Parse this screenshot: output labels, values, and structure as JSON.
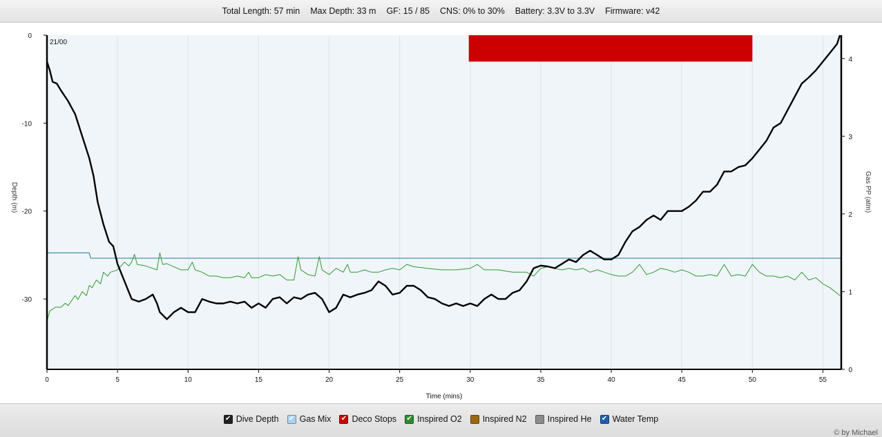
{
  "header": {
    "total_length": "Total Length: 57 min",
    "max_depth": "Max Depth: 33 m",
    "gf": "GF: 15 / 85",
    "cns": "CNS: 0% to 30%",
    "battery": "Battery: 3.3V to 3.3V",
    "firmware": "Firmware: v42"
  },
  "legend": [
    {
      "label": "Dive Depth",
      "color": "#222222",
      "checked": true
    },
    {
      "label": "Gas Mix",
      "color": "#a9d3f5",
      "checked": true
    },
    {
      "label": "Deco Stops",
      "color": "#cc0000",
      "checked": true
    },
    {
      "label": "Inspired O2",
      "color": "#2e8b2e",
      "checked": true
    },
    {
      "label": "Inspired N2",
      "color": "#9a6a10",
      "checked": false
    },
    {
      "label": "Inspired He",
      "color": "#8c8c8c",
      "checked": false
    },
    {
      "label": "Water Temp",
      "color": "#1f5fa8",
      "checked": true
    }
  ],
  "copyright": "© by Michael",
  "chart_data": {
    "type": "line",
    "xlabel": "Time (mins)",
    "ylabel_left": "Depth (m)",
    "ylabel_right": "Gas PP (atm)",
    "xlim": [
      0,
      56.3
    ],
    "ylim_left": [
      -38,
      0
    ],
    "ylim_right": [
      0,
      4.3
    ],
    "x_ticks": [
      0,
      5,
      10,
      15,
      20,
      25,
      30,
      35,
      40,
      45,
      50,
      55
    ],
    "y_ticks_left": [
      0,
      -10,
      -20,
      -30
    ],
    "y_ticks_right": [
      0,
      1,
      2,
      3,
      4
    ],
    "gas_mix_label": "21/00",
    "deco_stop": {
      "start": 29.9,
      "end": 50.0,
      "depth_top": 0,
      "depth_bottom": -3
    },
    "grid": true,
    "series": [
      {
        "name": "Dive Depth",
        "axis": "left",
        "color": "#000000",
        "points": [
          [
            0,
            -3
          ],
          [
            0.2,
            -4
          ],
          [
            0.4,
            -5.3
          ],
          [
            0.7,
            -5.5
          ],
          [
            1,
            -6.3
          ],
          [
            1.5,
            -7.5
          ],
          [
            2,
            -9
          ],
          [
            2.5,
            -11.5
          ],
          [
            3,
            -14
          ],
          [
            3.3,
            -16
          ],
          [
            3.6,
            -19
          ],
          [
            4,
            -21.5
          ],
          [
            4.4,
            -23.5
          ],
          [
            4.7,
            -24
          ],
          [
            5,
            -26
          ],
          [
            5.5,
            -28
          ],
          [
            6,
            -30
          ],
          [
            6.5,
            -30.3
          ],
          [
            7,
            -30
          ],
          [
            7.5,
            -29.5
          ],
          [
            7.8,
            -30.5
          ],
          [
            8,
            -31.5
          ],
          [
            8.5,
            -32.3
          ],
          [
            9,
            -31.5
          ],
          [
            9.5,
            -31
          ],
          [
            10,
            -31.5
          ],
          [
            10.5,
            -31.5
          ],
          [
            11,
            -30
          ],
          [
            11.5,
            -30.3
          ],
          [
            12,
            -30.5
          ],
          [
            12.5,
            -30.5
          ],
          [
            13,
            -30.3
          ],
          [
            13.5,
            -30.5
          ],
          [
            14,
            -30.3
          ],
          [
            14.5,
            -31
          ],
          [
            15,
            -30.5
          ],
          [
            15.5,
            -31
          ],
          [
            16,
            -30
          ],
          [
            16.5,
            -29.8
          ],
          [
            17,
            -30.5
          ],
          [
            17.5,
            -29.8
          ],
          [
            18,
            -30
          ],
          [
            18.5,
            -29.5
          ],
          [
            19,
            -29.3
          ],
          [
            19.5,
            -30
          ],
          [
            20,
            -31.5
          ],
          [
            20.5,
            -31
          ],
          [
            21,
            -29.5
          ],
          [
            21.5,
            -29.8
          ],
          [
            22,
            -29.5
          ],
          [
            22.5,
            -29.3
          ],
          [
            23,
            -29
          ],
          [
            23.5,
            -28
          ],
          [
            24,
            -28.5
          ],
          [
            24.5,
            -29.5
          ],
          [
            25,
            -29.3
          ],
          [
            25.5,
            -28.5
          ],
          [
            26,
            -28.5
          ],
          [
            26.5,
            -29
          ],
          [
            27,
            -29.8
          ],
          [
            27.5,
            -30
          ],
          [
            28,
            -30.5
          ],
          [
            28.5,
            -30.8
          ],
          [
            29,
            -30.5
          ],
          [
            29.5,
            -30.8
          ],
          [
            30,
            -30.5
          ],
          [
            30.5,
            -30.8
          ],
          [
            31,
            -30
          ],
          [
            31.5,
            -29.5
          ],
          [
            32,
            -30
          ],
          [
            32.5,
            -30
          ],
          [
            33,
            -29.3
          ],
          [
            33.5,
            -29
          ],
          [
            34,
            -28
          ],
          [
            34.5,
            -26.5
          ],
          [
            35,
            -26.2
          ],
          [
            35.5,
            -26.3
          ],
          [
            36,
            -26.5
          ],
          [
            36.5,
            -26
          ],
          [
            37,
            -25.5
          ],
          [
            37.5,
            -25.8
          ],
          [
            38,
            -25
          ],
          [
            38.5,
            -24.5
          ],
          [
            39,
            -25
          ],
          [
            39.5,
            -25.5
          ],
          [
            40,
            -25.5
          ],
          [
            40.5,
            -25
          ],
          [
            41,
            -23.5
          ],
          [
            41.5,
            -22.3
          ],
          [
            42,
            -21.8
          ],
          [
            42.5,
            -21
          ],
          [
            43,
            -20.5
          ],
          [
            43.5,
            -21
          ],
          [
            44,
            -20
          ],
          [
            44.5,
            -20
          ],
          [
            45,
            -20
          ],
          [
            45.5,
            -19.5
          ],
          [
            46,
            -18.8
          ],
          [
            46.5,
            -17.8
          ],
          [
            47,
            -17.8
          ],
          [
            47.5,
            -17
          ],
          [
            48,
            -15.5
          ],
          [
            48.5,
            -15.5
          ],
          [
            49,
            -15
          ],
          [
            49.5,
            -14.8
          ],
          [
            50,
            -14
          ],
          [
            50.5,
            -13
          ],
          [
            51,
            -12
          ],
          [
            51.5,
            -10.5
          ],
          [
            52,
            -10
          ],
          [
            52.5,
            -8.5
          ],
          [
            53,
            -7
          ],
          [
            53.5,
            -5.5
          ],
          [
            54,
            -4.8
          ],
          [
            54.5,
            -4
          ],
          [
            55,
            -3
          ],
          [
            55.5,
            -2
          ],
          [
            56,
            -1
          ],
          [
            56.2,
            0
          ]
        ]
      },
      {
        "name": "Inspired O2",
        "axis": "right",
        "color": "#2e9a2e",
        "points": [
          [
            0,
            0.62
          ],
          [
            0.2,
            0.75
          ],
          [
            0.6,
            0.8
          ],
          [
            1,
            0.8
          ],
          [
            1.3,
            0.85
          ],
          [
            1.5,
            0.82
          ],
          [
            2,
            0.95
          ],
          [
            2.2,
            0.9
          ],
          [
            2.5,
            1.0
          ],
          [
            2.8,
            0.95
          ],
          [
            3,
            1.08
          ],
          [
            3.2,
            1.05
          ],
          [
            3.5,
            1.15
          ],
          [
            3.8,
            1.1
          ],
          [
            4,
            1.25
          ],
          [
            4.3,
            1.2
          ],
          [
            4.5,
            1.25
          ],
          [
            5,
            1.28
          ],
          [
            5.5,
            1.38
          ],
          [
            5.8,
            1.33
          ],
          [
            6,
            1.38
          ],
          [
            6.2,
            1.48
          ],
          [
            6.4,
            1.35
          ],
          [
            7,
            1.33
          ],
          [
            7.5,
            1.3
          ],
          [
            7.8,
            1.28
          ],
          [
            8,
            1.5
          ],
          [
            8.2,
            1.35
          ],
          [
            8.5,
            1.36
          ],
          [
            9,
            1.32
          ],
          [
            9.5,
            1.28
          ],
          [
            10,
            1.28
          ],
          [
            10.3,
            1.38
          ],
          [
            10.5,
            1.28
          ],
          [
            11,
            1.25
          ],
          [
            11.5,
            1.2
          ],
          [
            12,
            1.2
          ],
          [
            12.5,
            1.18
          ],
          [
            13,
            1.18
          ],
          [
            13.5,
            1.2
          ],
          [
            14,
            1.18
          ],
          [
            14.3,
            1.25
          ],
          [
            14.5,
            1.18
          ],
          [
            15,
            1.18
          ],
          [
            15.5,
            1.22
          ],
          [
            16,
            1.2
          ],
          [
            16.5,
            1.22
          ],
          [
            17,
            1.15
          ],
          [
            17.5,
            1.15
          ],
          [
            17.8,
            1.45
          ],
          [
            18,
            1.28
          ],
          [
            18.5,
            1.22
          ],
          [
            19,
            1.2
          ],
          [
            19.3,
            1.45
          ],
          [
            19.5,
            1.28
          ],
          [
            20,
            1.22
          ],
          [
            20.5,
            1.3
          ],
          [
            21,
            1.25
          ],
          [
            21.3,
            1.35
          ],
          [
            21.5,
            1.25
          ],
          [
            22,
            1.25
          ],
          [
            22.5,
            1.28
          ],
          [
            23,
            1.25
          ],
          [
            23.5,
            1.25
          ],
          [
            24,
            1.28
          ],
          [
            24.5,
            1.3
          ],
          [
            25,
            1.28
          ],
          [
            25.5,
            1.35
          ],
          [
            26,
            1.32
          ],
          [
            27,
            1.3
          ],
          [
            28,
            1.28
          ],
          [
            29,
            1.28
          ],
          [
            30,
            1.3
          ],
          [
            30.5,
            1.35
          ],
          [
            31,
            1.28
          ],
          [
            32,
            1.28
          ],
          [
            33,
            1.25
          ],
          [
            34,
            1.25
          ],
          [
            34.5,
            1.2
          ],
          [
            35,
            1.3
          ],
          [
            35.5,
            1.32
          ],
          [
            36,
            1.3
          ],
          [
            36.5,
            1.28
          ],
          [
            37,
            1.3
          ],
          [
            37.5,
            1.28
          ],
          [
            38,
            1.3
          ],
          [
            38.5,
            1.25
          ],
          [
            39,
            1.28
          ],
          [
            39.5,
            1.25
          ],
          [
            40,
            1.22
          ],
          [
            40.5,
            1.2
          ],
          [
            41,
            1.2
          ],
          [
            41.5,
            1.25
          ],
          [
            42,
            1.35
          ],
          [
            42.5,
            1.22
          ],
          [
            43,
            1.25
          ],
          [
            43.5,
            1.3
          ],
          [
            44,
            1.28
          ],
          [
            44.5,
            1.25
          ],
          [
            45,
            1.28
          ],
          [
            45.5,
            1.25
          ],
          [
            46,
            1.2
          ],
          [
            46.5,
            1.2
          ],
          [
            47,
            1.22
          ],
          [
            47.5,
            1.2
          ],
          [
            48,
            1.35
          ],
          [
            48.5,
            1.2
          ],
          [
            49,
            1.22
          ],
          [
            49.5,
            1.2
          ],
          [
            50,
            1.35
          ],
          [
            50.5,
            1.25
          ],
          [
            51,
            1.2
          ],
          [
            51.5,
            1.2
          ],
          [
            52,
            1.18
          ],
          [
            52.5,
            1.2
          ],
          [
            53,
            1.15
          ],
          [
            53.5,
            1.25
          ],
          [
            54,
            1.15
          ],
          [
            54.5,
            1.18
          ],
          [
            55,
            1.1
          ],
          [
            55.5,
            1.05
          ],
          [
            56,
            0.98
          ],
          [
            56.2,
            0.95
          ]
        ]
      },
      {
        "name": "Water Temp",
        "axis": "right",
        "color": "#1a7a9a",
        "points": [
          [
            0,
            1.5
          ],
          [
            3.0,
            1.5
          ],
          [
            3.1,
            1.43
          ],
          [
            56.3,
            1.43
          ]
        ]
      }
    ]
  }
}
